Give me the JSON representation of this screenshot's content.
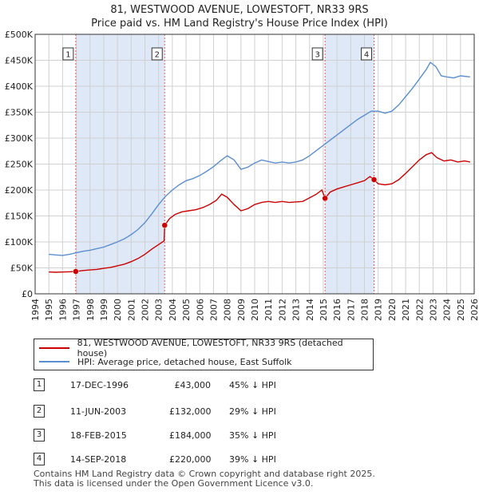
{
  "title_line1": "81, WESTWOOD AVENUE, LOWESTOFT, NR33 9RS",
  "title_line2": "Price paid vs. HM Land Registry's House Price Index (HPI)",
  "colors": {
    "property": "#cc0000",
    "hpi": "#5b8fd0",
    "shade": "#dfe8f7",
    "marker_line": "#e06060"
  },
  "chart_data": {
    "type": "line",
    "title": "81, WESTWOOD AVENUE, LOWESTOFT, NR33 9RS — Price paid vs. HM Land Registry's House Price Index (HPI)",
    "xlim": [
      1994,
      2026
    ],
    "ylim": [
      0,
      500000
    ],
    "yticks": [
      {
        "value": 0,
        "label": "£0"
      },
      {
        "value": 50000,
        "label": "£50K"
      },
      {
        "value": 100000,
        "label": "£100K"
      },
      {
        "value": 150000,
        "label": "£150K"
      },
      {
        "value": 200000,
        "label": "£200K"
      },
      {
        "value": 250000,
        "label": "£250K"
      },
      {
        "value": 300000,
        "label": "£300K"
      },
      {
        "value": 350000,
        "label": "£350K"
      },
      {
        "value": 400000,
        "label": "£400K"
      },
      {
        "value": 450000,
        "label": "£450K"
      },
      {
        "value": 500000,
        "label": "£500K"
      }
    ],
    "xticks": [
      1994,
      1995,
      1996,
      1997,
      1998,
      1999,
      2000,
      2001,
      2002,
      2003,
      2004,
      2005,
      2006,
      2007,
      2008,
      2009,
      2010,
      2011,
      2012,
      2013,
      2014,
      2015,
      2016,
      2017,
      2018,
      2019,
      2020,
      2021,
      2022,
      2023,
      2024,
      2025,
      2026
    ],
    "grid": true,
    "shaded_ranges": [
      [
        1996.96,
        2003.44
      ],
      [
        2015.13,
        2018.7
      ]
    ],
    "series": [
      {
        "name": "81, WESTWOOD AVENUE, LOWESTOFT, NR33 9RS (detached house)",
        "color": "#cc0000",
        "points": [
          [
            1995.0,
            42000
          ],
          [
            1995.5,
            41500
          ],
          [
            1996.0,
            42000
          ],
          [
            1996.5,
            42500
          ],
          [
            1996.96,
            43000
          ],
          [
            1997.5,
            45000
          ],
          [
            1998.0,
            46000
          ],
          [
            1998.5,
            47000
          ],
          [
            1999.0,
            49000
          ],
          [
            1999.5,
            51000
          ],
          [
            2000.0,
            54000
          ],
          [
            2000.5,
            57000
          ],
          [
            2001.0,
            62000
          ],
          [
            2001.5,
            68000
          ],
          [
            2002.0,
            76000
          ],
          [
            2002.5,
            86000
          ],
          [
            2003.0,
            95000
          ],
          [
            2003.4,
            102000
          ],
          [
            2003.44,
            132000
          ],
          [
            2003.8,
            145000
          ],
          [
            2004.2,
            153000
          ],
          [
            2004.7,
            158000
          ],
          [
            2005.2,
            160000
          ],
          [
            2005.7,
            162000
          ],
          [
            2006.2,
            166000
          ],
          [
            2006.7,
            172000
          ],
          [
            2007.2,
            180000
          ],
          [
            2007.6,
            192000
          ],
          [
            2008.0,
            186000
          ],
          [
            2008.5,
            172000
          ],
          [
            2009.0,
            160000
          ],
          [
            2009.5,
            164000
          ],
          [
            2010.0,
            172000
          ],
          [
            2010.5,
            176000
          ],
          [
            2011.0,
            178000
          ],
          [
            2011.5,
            176000
          ],
          [
            2012.0,
            178000
          ],
          [
            2012.5,
            176000
          ],
          [
            2013.0,
            177000
          ],
          [
            2013.5,
            178000
          ],
          [
            2014.0,
            185000
          ],
          [
            2014.5,
            192000
          ],
          [
            2014.9,
            200000
          ],
          [
            2015.13,
            184000
          ],
          [
            2015.5,
            196000
          ],
          [
            2016.0,
            202000
          ],
          [
            2016.5,
            206000
          ],
          [
            2017.0,
            210000
          ],
          [
            2017.5,
            214000
          ],
          [
            2018.0,
            218000
          ],
          [
            2018.4,
            226000
          ],
          [
            2018.7,
            220000
          ],
          [
            2019.0,
            212000
          ],
          [
            2019.5,
            210000
          ],
          [
            2020.0,
            212000
          ],
          [
            2020.5,
            220000
          ],
          [
            2021.0,
            232000
          ],
          [
            2021.5,
            245000
          ],
          [
            2022.0,
            258000
          ],
          [
            2022.5,
            268000
          ],
          [
            2022.9,
            272000
          ],
          [
            2023.3,
            262000
          ],
          [
            2023.8,
            256000
          ],
          [
            2024.3,
            258000
          ],
          [
            2024.8,
            254000
          ],
          [
            2025.3,
            256000
          ],
          [
            2025.7,
            254000
          ]
        ]
      },
      {
        "name": "HPI: Average price, detached house, East Suffolk",
        "color": "#5b8fd0",
        "points": [
          [
            1995.0,
            76000
          ],
          [
            1995.5,
            75000
          ],
          [
            1996.0,
            74000
          ],
          [
            1996.5,
            76000
          ],
          [
            1997.0,
            79000
          ],
          [
            1997.5,
            82000
          ],
          [
            1998.0,
            84000
          ],
          [
            1998.5,
            87000
          ],
          [
            1999.0,
            90000
          ],
          [
            1999.5,
            95000
          ],
          [
            2000.0,
            100000
          ],
          [
            2000.5,
            106000
          ],
          [
            2001.0,
            114000
          ],
          [
            2001.5,
            124000
          ],
          [
            2002.0,
            137000
          ],
          [
            2002.5,
            154000
          ],
          [
            2003.0,
            172000
          ],
          [
            2003.5,
            188000
          ],
          [
            2004.0,
            200000
          ],
          [
            2004.5,
            210000
          ],
          [
            2005.0,
            218000
          ],
          [
            2005.5,
            222000
          ],
          [
            2006.0,
            228000
          ],
          [
            2006.5,
            236000
          ],
          [
            2007.0,
            245000
          ],
          [
            2007.5,
            256000
          ],
          [
            2008.0,
            266000
          ],
          [
            2008.5,
            258000
          ],
          [
            2009.0,
            240000
          ],
          [
            2009.5,
            244000
          ],
          [
            2010.0,
            252000
          ],
          [
            2010.5,
            258000
          ],
          [
            2011.0,
            255000
          ],
          [
            2011.5,
            252000
          ],
          [
            2012.0,
            254000
          ],
          [
            2012.5,
            252000
          ],
          [
            2013.0,
            254000
          ],
          [
            2013.5,
            258000
          ],
          [
            2014.0,
            266000
          ],
          [
            2014.5,
            276000
          ],
          [
            2015.0,
            286000
          ],
          [
            2015.5,
            296000
          ],
          [
            2016.0,
            306000
          ],
          [
            2016.5,
            316000
          ],
          [
            2017.0,
            326000
          ],
          [
            2017.5,
            336000
          ],
          [
            2018.0,
            344000
          ],
          [
            2018.5,
            352000
          ],
          [
            2019.0,
            352000
          ],
          [
            2019.5,
            348000
          ],
          [
            2020.0,
            352000
          ],
          [
            2020.5,
            364000
          ],
          [
            2021.0,
            380000
          ],
          [
            2021.5,
            396000
          ],
          [
            2022.0,
            414000
          ],
          [
            2022.5,
            432000
          ],
          [
            2022.8,
            446000
          ],
          [
            2023.2,
            438000
          ],
          [
            2023.6,
            420000
          ],
          [
            2024.0,
            418000
          ],
          [
            2024.5,
            416000
          ],
          [
            2025.0,
            420000
          ],
          [
            2025.7,
            418000
          ]
        ]
      }
    ],
    "sale_points": [
      {
        "label": "1",
        "x": 1996.96,
        "y": 43000
      },
      {
        "label": "2",
        "x": 2003.44,
        "y": 132000
      },
      {
        "label": "3",
        "x": 2015.13,
        "y": 184000
      },
      {
        "label": "4",
        "x": 2018.7,
        "y": 220000
      }
    ]
  },
  "legend": {
    "property": "81, WESTWOOD AVENUE, LOWESTOFT, NR33 9RS (detached house)",
    "hpi": "HPI: Average price, detached house, East Suffolk"
  },
  "sales": [
    {
      "num": "1",
      "date": "17-DEC-1996",
      "price": "£43,000",
      "hpi": "45% ↓ HPI"
    },
    {
      "num": "2",
      "date": "11-JUN-2003",
      "price": "£132,000",
      "hpi": "29% ↓ HPI"
    },
    {
      "num": "3",
      "date": "18-FEB-2015",
      "price": "£184,000",
      "hpi": "35% ↓ HPI"
    },
    {
      "num": "4",
      "date": "14-SEP-2018",
      "price": "£220,000",
      "hpi": "39% ↓ HPI"
    }
  ],
  "footer": {
    "line1": "Contains HM Land Registry data © Crown copyright and database right 2025.",
    "line2": "This data is licensed under the Open Government Licence v3.0."
  }
}
